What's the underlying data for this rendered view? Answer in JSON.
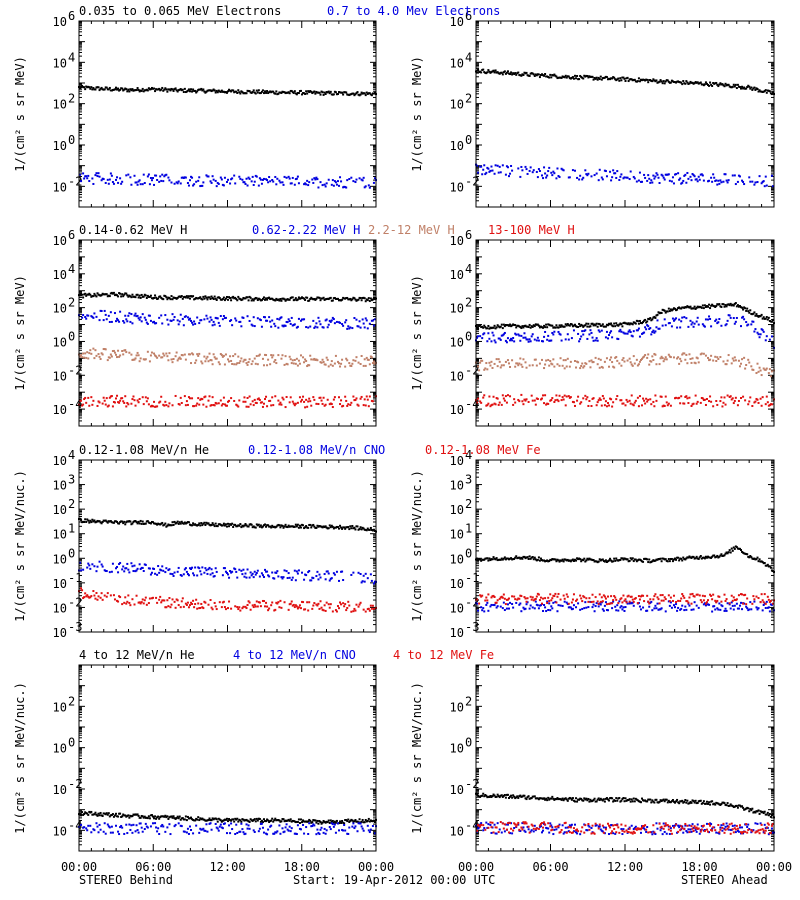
{
  "colors": {
    "black": "#000000",
    "blue": "#0000e0",
    "tan": "#c08068",
    "red": "#e01010",
    "background": "#ffffff"
  },
  "footer": {
    "left": "STEREO Behind",
    "center": "Start: 19-Apr-2012 00:00 UTC",
    "right": "STEREO Ahead"
  },
  "x_tick_labels": [
    "00:00",
    "06:00",
    "12:00",
    "18:00",
    "00:00"
  ],
  "rows": [
    {
      "legend": [
        {
          "text": "0.035 to 0.065 MeV Electrons",
          "color": "#000000"
        },
        {
          "text": "0.7 to 4.0 Mev Electrons",
          "color": "#0000e0"
        }
      ],
      "ylabel": "1/(cm² s sr MeV)",
      "ylim_log10": [
        -3,
        6
      ],
      "ytick_exponents": [
        -2,
        0,
        2,
        4,
        6
      ],
      "ytick_style": "power"
    },
    {
      "legend": [
        {
          "text": "0.14-0.62 MeV H",
          "color": "#000000"
        },
        {
          "text": "0.62-2.22 MeV H",
          "color": "#0000e0"
        },
        {
          "text": "2.2-12 MeV H",
          "color": "#c08068"
        },
        {
          "text": "13-100 MeV H",
          "color": "#e01010"
        }
      ],
      "ylabel": "1/(cm² s sr MeV)",
      "ylim_log10": [
        -5,
        6
      ],
      "ytick_exponents": [
        -4,
        -2,
        0,
        2,
        4,
        6
      ],
      "ytick_style": "power"
    },
    {
      "legend": [
        {
          "text": "0.12-1.08 MeV/n He",
          "color": "#000000"
        },
        {
          "text": "0.12-1.08 MeV/n CNO",
          "color": "#0000e0"
        },
        {
          "text": "0.12-1.08 MeV Fe",
          "color": "#e01010"
        }
      ],
      "ylabel": "1/(cm² s sr MeV/nuc.)",
      "ylim_log10": [
        -3,
        4
      ],
      "ytick_exponents": [
        -3,
        -2,
        -1,
        0,
        1,
        2,
        3,
        4
      ],
      "ytick_style": "power"
    },
    {
      "legend": [
        {
          "text": "4 to 12 MeV/n He",
          "color": "#000000"
        },
        {
          "text": "4 to 12 MeV/n CNO",
          "color": "#0000e0"
        },
        {
          "text": "4 to 12 MeV Fe",
          "color": "#e01010"
        }
      ],
      "ylabel": "1/(cm² s sr MeV/nuc.)",
      "ylim_log10": [
        -5,
        4
      ],
      "ytick_exponents": [
        -4,
        -2,
        0,
        2
      ],
      "ytick_style": "power"
    }
  ],
  "chart_data": [
    {
      "type": "scatter",
      "panel": "STEREO Behind / Electrons",
      "x_unit": "hours since start",
      "xlim": [
        0,
        24
      ],
      "y_scale": "log",
      "series": [
        {
          "name": "0.035 to 0.065 MeV Electrons",
          "color": "#000000",
          "x": [
            0,
            2,
            4,
            6,
            8,
            10,
            12,
            14,
            16,
            18,
            20,
            22,
            24
          ],
          "y": [
            600,
            520,
            460,
            500,
            440,
            420,
            390,
            370,
            350,
            340,
            320,
            310,
            300
          ]
        },
        {
          "name": "0.7 to 4.0 Mev Electrons",
          "color": "#0000e0",
          "x": [
            0,
            4,
            8,
            12,
            16,
            20,
            24
          ],
          "y": [
            0.025,
            0.022,
            0.02,
            0.018,
            0.017,
            0.016,
            0.016
          ]
        }
      ]
    },
    {
      "type": "scatter",
      "panel": "STEREO Ahead / Electrons",
      "x_unit": "hours since start",
      "xlim": [
        0,
        24
      ],
      "y_scale": "log",
      "series": [
        {
          "name": "0.035 to 0.065 MeV Electrons",
          "color": "#000000",
          "x": [
            0,
            2,
            4,
            6,
            8,
            10,
            12,
            14,
            16,
            18,
            20,
            22,
            24
          ],
          "y": [
            4000,
            3200,
            2600,
            2200,
            1900,
            1700,
            1500,
            1300,
            1100,
            950,
            800,
            600,
            300
          ]
        },
        {
          "name": "0.7 to 4.0 Mev Electrons",
          "color": "#0000e0",
          "x": [
            0,
            4,
            8,
            12,
            16,
            20,
            24
          ],
          "y": [
            0.07,
            0.05,
            0.04,
            0.03,
            0.025,
            0.022,
            0.018
          ]
        }
      ]
    },
    {
      "type": "scatter",
      "panel": "STEREO Behind / Protons",
      "x_unit": "hours since start",
      "xlim": [
        0,
        24
      ],
      "y_scale": "log",
      "series": [
        {
          "name": "0.14-0.62 MeV H",
          "color": "#000000",
          "x": [
            0,
            3,
            6,
            9,
            12,
            15,
            18,
            21,
            24
          ],
          "y": [
            500,
            600,
            420,
            380,
            350,
            330,
            320,
            320,
            300
          ]
        },
        {
          "name": "0.62-2.22 MeV H",
          "color": "#0000e0",
          "x": [
            0,
            3,
            6,
            9,
            12,
            15,
            18,
            21,
            24
          ],
          "y": [
            35,
            28,
            22,
            18,
            16,
            14,
            13,
            12,
            11
          ]
        },
        {
          "name": "2.2-12 MeV H",
          "color": "#c08068",
          "x": [
            0,
            3,
            6,
            9,
            12,
            15,
            18,
            21,
            24
          ],
          "y": [
            0.2,
            0.16,
            0.12,
            0.1,
            0.09,
            0.08,
            0.07,
            0.07,
            0.065
          ]
        },
        {
          "name": "13-100 MeV H",
          "color": "#e01010",
          "x": [
            0,
            4,
            8,
            12,
            16,
            20,
            24
          ],
          "y": [
            0.0003,
            0.0003,
            0.00028,
            0.00028,
            0.00027,
            0.00027,
            0.00027
          ]
        }
      ]
    },
    {
      "type": "scatter",
      "panel": "STEREO Ahead / Protons",
      "x_unit": "hours since start",
      "xlim": [
        0,
        24
      ],
      "y_scale": "log",
      "series": [
        {
          "name": "0.14-0.62 MeV H",
          "color": "#000000",
          "x": [
            0,
            3,
            6,
            9,
            12,
            14,
            15,
            17,
            19,
            21,
            22,
            23,
            24
          ],
          "y": [
            7,
            8,
            8,
            9,
            10,
            18,
            60,
            100,
            120,
            150,
            60,
            30,
            15
          ]
        },
        {
          "name": "0.62-2.22 MeV H",
          "color": "#0000e0",
          "x": [
            0,
            3,
            6,
            9,
            12,
            14,
            15,
            17,
            19,
            21,
            22,
            23,
            24
          ],
          "y": [
            1.5,
            2,
            2,
            2.2,
            2.5,
            5,
            12,
            15,
            15,
            18,
            12,
            3,
            0.8
          ]
        },
        {
          "name": "2.2-12 MeV H",
          "color": "#c08068",
          "x": [
            0,
            3,
            6,
            9,
            12,
            15,
            18,
            21,
            22,
            24
          ],
          "y": [
            0.04,
            0.05,
            0.05,
            0.055,
            0.06,
            0.1,
            0.1,
            0.08,
            0.04,
            0.01
          ]
        },
        {
          "name": "13-100 MeV H",
          "color": "#e01010",
          "x": [
            0,
            4,
            8,
            12,
            16,
            20,
            24
          ],
          "y": [
            0.0003,
            0.00035,
            0.0003,
            0.0003,
            0.0003,
            0.0003,
            0.0003
          ]
        }
      ]
    },
    {
      "type": "scatter",
      "panel": "STEREO Behind / Heavy ions low energy",
      "x_unit": "hours since start",
      "xlim": [
        0,
        24
      ],
      "y_scale": "log",
      "series": [
        {
          "name": "0.12-1.08 MeV/n He",
          "color": "#000000",
          "x": [
            0,
            2,
            4,
            6,
            7,
            8,
            10,
            12,
            14,
            16,
            18,
            20,
            22,
            24
          ],
          "y": [
            35,
            30,
            28,
            30,
            22,
            28,
            24,
            22,
            21,
            20,
            20,
            19,
            18,
            14
          ]
        },
        {
          "name": "0.12-1.08 MeV/n CNO",
          "color": "#0000e0",
          "x": [
            0,
            4,
            8,
            12,
            16,
            20,
            24
          ],
          "y": [
            0.5,
            0.4,
            0.3,
            0.25,
            0.2,
            0.2,
            0.15
          ]
        },
        {
          "name": "0.12-1.08 MeV Fe",
          "color": "#e01010",
          "x": [
            0,
            4,
            8,
            12,
            16,
            20,
            24
          ],
          "y": [
            0.04,
            0.02,
            0.015,
            0.012,
            0.012,
            0.011,
            0.01
          ]
        }
      ]
    },
    {
      "type": "scatter",
      "panel": "STEREO Ahead / Heavy ions low energy",
      "x_unit": "hours since start",
      "xlim": [
        0,
        24
      ],
      "y_scale": "log",
      "series": [
        {
          "name": "0.12-1.08 MeV/n He",
          "color": "#000000",
          "x": [
            0,
            2,
            4,
            6,
            8,
            10,
            12,
            14,
            16,
            18,
            20,
            21,
            22,
            23,
            24
          ],
          "y": [
            0.9,
            1.0,
            1.1,
            0.8,
            0.9,
            0.8,
            0.9,
            0.8,
            0.9,
            1.1,
            1.3,
            3,
            1.2,
            0.8,
            0.3
          ]
        },
        {
          "name": "0.12-1.08 MeV/n CNO",
          "color": "#0000e0",
          "x": [
            0,
            4,
            8,
            12,
            16,
            20,
            24
          ],
          "y": [
            0.011,
            0.011,
            0.011,
            0.011,
            0.011,
            0.011,
            0.011
          ]
        },
        {
          "name": "0.12-1.08 MeV Fe",
          "color": "#e01010",
          "x": [
            0,
            4,
            8,
            12,
            16,
            20,
            24
          ],
          "y": [
            0.022,
            0.022,
            0.022,
            0.022,
            0.022,
            0.022,
            0.022
          ]
        }
      ]
    },
    {
      "type": "scatter",
      "panel": "STEREO Behind / Heavy ions high energy",
      "x_unit": "hours since start",
      "xlim": [
        0,
        24
      ],
      "y_scale": "log",
      "series": [
        {
          "name": "4 to 12 MeV/n He",
          "color": "#000000",
          "x": [
            0,
            4,
            8,
            12,
            16,
            20,
            24
          ],
          "y": [
            0.0007,
            0.0005,
            0.0004,
            0.0003,
            0.0003,
            0.00025,
            0.0003
          ]
        },
        {
          "name": "4 to 12 MeV/n CNO",
          "color": "#0000e0",
          "x": [
            0,
            6,
            12,
            18,
            24
          ],
          "y": [
            0.00012,
            0.00012,
            0.00012,
            0.00012,
            0.00012
          ]
        },
        {
          "name": "4 to 12 MeV Fe",
          "color": "#e01010",
          "x": [],
          "y": []
        }
      ]
    },
    {
      "type": "scatter",
      "panel": "STEREO Ahead / Heavy ions high energy",
      "x_unit": "hours since start",
      "xlim": [
        0,
        24
      ],
      "y_scale": "log",
      "series": [
        {
          "name": "4 to 12 MeV/n He",
          "color": "#000000",
          "x": [
            0,
            4,
            8,
            12,
            16,
            20,
            22,
            24
          ],
          "y": [
            0.005,
            0.004,
            0.003,
            0.003,
            0.0025,
            0.002,
            0.001,
            0.0005
          ]
        },
        {
          "name": "4 to 12 MeV/n CNO",
          "color": "#0000e0",
          "x": [
            0,
            6,
            12,
            18,
            24
          ],
          "y": [
            0.00013,
            0.00012,
            0.00012,
            0.00012,
            0.00012
          ]
        },
        {
          "name": "4 to 12 MeV Fe",
          "color": "#e01010",
          "x": [
            0,
            6,
            12,
            18,
            24
          ],
          "y": [
            0.00015,
            0.00013,
            0.00012,
            0.00012,
            0.00012
          ]
        }
      ]
    }
  ]
}
